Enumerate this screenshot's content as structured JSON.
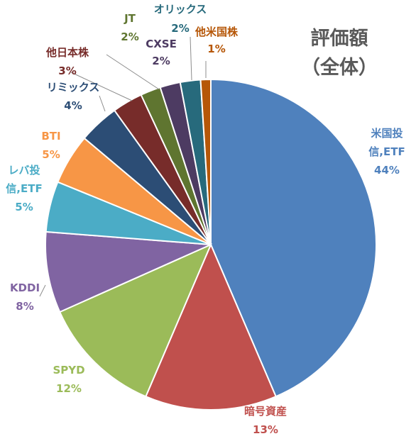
{
  "chart_data": {
    "type": "pie",
    "title": "評価額",
    "subtitle": "（全体）",
    "categories": [
      "米国投信,ETF",
      "暗号資産",
      "SPYD",
      "KDDI",
      "レバ投信,ETF",
      "BTI",
      "リミックス",
      "他日本株",
      "JT",
      "CXSE",
      "オリックス",
      "他米国株"
    ],
    "values": [
      44,
      13,
      12,
      8,
      5,
      5,
      4,
      3,
      2,
      2,
      2,
      1
    ],
    "percent_labels": [
      "44%",
      "13%",
      "12%",
      "8%",
      "5%",
      "5%",
      "4%",
      "3%",
      "2%",
      "2%",
      "2%",
      "1%"
    ],
    "colors": [
      "#4F81BD",
      "#C0504D",
      "#9BBB59",
      "#8064A2",
      "#4BACC6",
      "#F79646",
      "#2C4D75",
      "#772C2A",
      "#5F7530",
      "#4D3B62",
      "#276A7C",
      "#B65708"
    ],
    "label_colors": [
      "#4F81BD",
      "#C0504D",
      "#9BBB59",
      "#8064A2",
      "#4BACC6",
      "#F79646",
      "#2C4D75",
      "#772C2A",
      "#5F7530",
      "#4D3B62",
      "#276A7C",
      "#B65708"
    ],
    "legend": "none"
  }
}
